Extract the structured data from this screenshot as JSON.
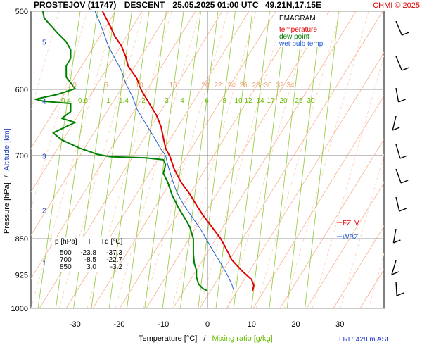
{
  "header": {
    "station": "PROSTEJOV (11747)",
    "mode": "DESCENT",
    "datetime": "25.05.2025 01:00 UTC",
    "location": "49.21N,17.15E",
    "copyright": "CHMI © 2025"
  },
  "legend": {
    "title": "EMAGRAM",
    "items": [
      {
        "label": "temperature",
        "color": "#e00000"
      },
      {
        "label": "dew point",
        "color": "#008000"
      },
      {
        "label": "wet bulb temp.",
        "color": "#2060d0"
      }
    ]
  },
  "axes": {
    "ylabel_pressure": "Pressure [hPa]",
    "ylabel_sep": "/",
    "ylabel_altitude": "Altitude [km]",
    "xlabel_temp": "Temperature [°C]",
    "xlabel_sep": "/",
    "xlabel_mixing": "Mixing ratio [g/kg]",
    "lrl": "LRL: 428 m ASL"
  },
  "levels_table": {
    "headers": [
      "p [hPa]",
      "T",
      "Td [°C]"
    ],
    "rows": [
      [
        "500",
        "-23.8",
        "-37.3"
      ],
      [
        "700",
        "-8.5",
        "-22.7"
      ],
      [
        "850",
        "3.0",
        "-3.2"
      ]
    ]
  },
  "markers": {
    "fzlv": "FZLV",
    "wbzl": "WBZL"
  },
  "chart_data": {
    "type": "line",
    "subtype": "emagram",
    "y_scale": "log",
    "ylim": [
      1000,
      500
    ],
    "xlim": [
      -40,
      40
    ],
    "xticks": [
      -30,
      -20,
      -10,
      0,
      10,
      20,
      30
    ],
    "yticks": [
      500,
      600,
      700,
      850,
      925,
      1000
    ],
    "grid": true,
    "legend_position": "top-right",
    "altitude_ticks": [
      {
        "km": "5",
        "p": 537
      },
      {
        "km": "4",
        "p": 617
      },
      {
        "km": "3",
        "p": 701
      },
      {
        "km": "2",
        "p": 795
      },
      {
        "km": "1",
        "p": 899
      }
    ],
    "mixing_ratio_labels": [
      "0.4",
      "0.6",
      "1",
      "1.4",
      "2",
      "3",
      "4",
      "6",
      "8",
      "10",
      "12",
      "14",
      "17",
      "20",
      "25",
      "30"
    ],
    "isotherm_labels": [
      "0",
      "5",
      "10",
      "15",
      "20",
      "22",
      "24",
      "26",
      "28",
      "30",
      "32",
      "34"
    ],
    "series": [
      {
        "name": "temperature",
        "color": "#e00000",
        "points": [
          [
            10.2,
            960
          ],
          [
            10.5,
            948
          ],
          [
            10,
            935
          ],
          [
            8,
            918
          ],
          [
            5.5,
            893
          ],
          [
            4,
            866
          ],
          [
            3,
            850
          ],
          [
            1,
            827
          ],
          [
            -1,
            805
          ],
          [
            -2.5,
            786
          ],
          [
            -4,
            766
          ],
          [
            -6,
            745
          ],
          [
            -7.5,
            723
          ],
          [
            -8.5,
            702
          ],
          [
            -9.5,
            688
          ],
          [
            -10,
            672
          ],
          [
            -10.5,
            655
          ],
          [
            -11.5,
            638
          ],
          [
            -13,
            622
          ],
          [
            -15,
            601
          ],
          [
            -16,
            585
          ],
          [
            -18,
            568
          ],
          [
            -18.5,
            556
          ],
          [
            -19.5,
            542
          ],
          [
            -21,
            530
          ],
          [
            -22,
            518
          ],
          [
            -23.8,
            500
          ]
        ]
      },
      {
        "name": "dew point",
        "color": "#008000",
        "points": [
          [
            0,
            960
          ],
          [
            -1,
            955
          ],
          [
            -2,
            945
          ],
          [
            -2.5,
            930
          ],
          [
            -2.5,
            915
          ],
          [
            -3,
            900
          ],
          [
            -3.2,
            880
          ],
          [
            -3.2,
            860
          ],
          [
            -3.2,
            850
          ],
          [
            -4,
            827
          ],
          [
            -5,
            812
          ],
          [
            -6.5,
            792
          ],
          [
            -8,
            768
          ],
          [
            -9,
            745
          ],
          [
            -10,
            730
          ],
          [
            -9.5,
            715
          ],
          [
            -10,
            707
          ],
          [
            -14,
            704
          ],
          [
            -22,
            702
          ],
          [
            -25,
            698
          ],
          [
            -29,
            688
          ],
          [
            -33,
            675
          ],
          [
            -35,
            664
          ],
          [
            -30,
            648
          ],
          [
            -33,
            642
          ],
          [
            -31,
            632
          ],
          [
            -31,
            620
          ],
          [
            -37,
            617
          ],
          [
            -39,
            614
          ],
          [
            -34,
            607
          ],
          [
            -30,
            599
          ],
          [
            -32,
            583
          ],
          [
            -32,
            568
          ],
          [
            -31,
            558
          ],
          [
            -31,
            547
          ],
          [
            -32,
            537
          ],
          [
            -34,
            526
          ],
          [
            -37,
            508
          ],
          [
            -37.3,
            500
          ]
        ]
      },
      {
        "name": "wet bulb temp.",
        "color": "#2060d0",
        "points": [
          [
            6,
            960
          ],
          [
            5.5,
            945
          ],
          [
            4.5,
            925
          ],
          [
            3,
            900
          ],
          [
            1.5,
            878
          ],
          [
            0,
            855
          ],
          [
            -1.5,
            832
          ],
          [
            -3.5,
            808
          ],
          [
            -5.5,
            784
          ],
          [
            -7,
            762
          ],
          [
            -8,
            740
          ],
          [
            -9,
            715
          ],
          [
            -9.5,
            700
          ],
          [
            -10.5,
            690
          ],
          [
            -12,
            672
          ],
          [
            -14,
            650
          ],
          [
            -16,
            628
          ],
          [
            -17,
            610
          ],
          [
            -18.5,
            592
          ],
          [
            -19.5,
            574
          ],
          [
            -21,
            558
          ],
          [
            -22.5,
            542
          ],
          [
            -23.5,
            526
          ],
          [
            -24.5,
            512
          ],
          [
            -25.5,
            500
          ]
        ]
      }
    ]
  }
}
